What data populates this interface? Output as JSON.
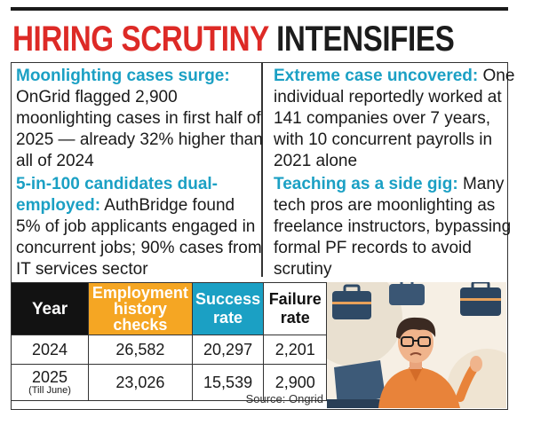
{
  "headline": {
    "red": "HIRING SCRUTINY",
    "dark": "INTENSIFIES"
  },
  "blocks": [
    {
      "head": "Moonlighting cases surge:",
      "body": "OnGrid flagged 2,900 moonlighting cases in first half of  2025 — already 32% higher than all of 2024"
    },
    {
      "head": "Extreme case uncovered:",
      "body": "One individual reportedly worked at 141 companies over 7 years, with 10 concurrent payrolls in 2021 alone"
    },
    {
      "head": "5-in-100 candidates dual-employed:",
      "body": "AuthBridge found 5% of job applicants engaged in concurrent jobs; 90% cases from IT services sector"
    },
    {
      "head": "Teaching as a side gig:",
      "body": "Many tech pros are moonlighting as freelance instructors, bypassing formal PF records to avoid scrutiny"
    }
  ],
  "table": {
    "headers": {
      "year": "Year",
      "employment": "Employment history checks",
      "success": "Success rate",
      "failure": "Failure rate"
    },
    "rows": [
      {
        "year": "2024",
        "note": "",
        "employment": "26,582",
        "success": "20,297",
        "failure": "2,201"
      },
      {
        "year": "2025",
        "note": "(Till June)",
        "employment": "23,026",
        "success": "15,539",
        "failure": "2,900"
      }
    ]
  },
  "source": "Source: Ongrid",
  "colors": {
    "accent_red": "#dd2a26",
    "accent_blue": "#1ba0c4",
    "accent_orange": "#f5a623",
    "dark": "#121212"
  },
  "illustration": {
    "icon": "worried-man-with-briefcases-illustration"
  }
}
